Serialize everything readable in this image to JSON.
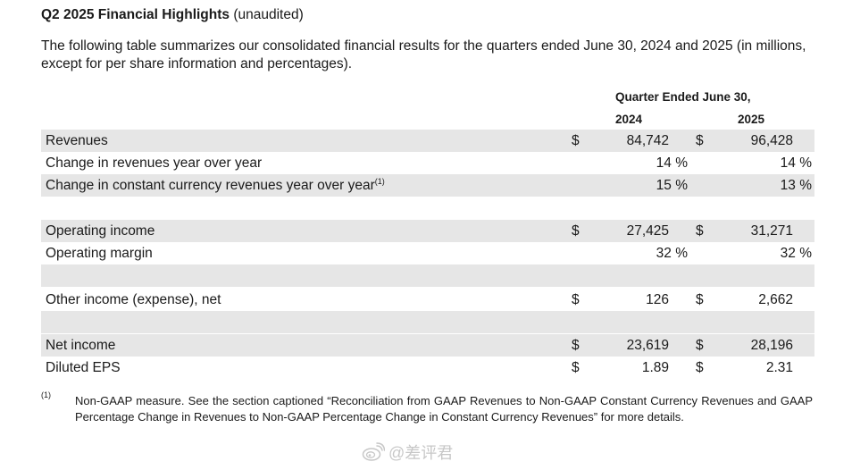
{
  "title": {
    "bold": "Q2 2025 Financial Highlights",
    "suffix": " (unaudited)"
  },
  "intro": "The following table summarizes our consolidated financial results for the quarters ended June 30, 2024 and 2025 (in millions, except for per share information and percentages).",
  "table": {
    "period_header": "Quarter Ended June 30,",
    "years": [
      "2024",
      "2025"
    ],
    "rows": [
      {
        "label": "Revenues",
        "currency1": "$",
        "value1": "84,742",
        "currency2": "$",
        "value2": "96,428"
      },
      {
        "label": "Change in revenues year over year",
        "value1": "14 %",
        "value2": "14 %"
      },
      {
        "label": "Change in constant currency revenues year over year",
        "sup": "(1)",
        "value1": "15 %",
        "value2": "13 %"
      },
      {
        "label": "Operating income",
        "currency1": "$",
        "value1": "27,425",
        "currency2": "$",
        "value2": "31,271"
      },
      {
        "label": "Operating margin",
        "value1": "32 %",
        "value2": "32 %"
      },
      {
        "label": "Other income (expense), net",
        "currency1": "$",
        "value1": "126",
        "currency2": "$",
        "value2": "2,662"
      },
      {
        "label": "Net income",
        "currency1": "$",
        "value1": "23,619",
        "currency2": "$",
        "value2": "28,196"
      },
      {
        "label": "Diluted EPS",
        "currency1": "$",
        "value1": "1.89",
        "currency2": "$",
        "value2": "2.31"
      }
    ]
  },
  "footnote": {
    "mark": "(1)",
    "text": "Non-GAAP measure. See the section captioned “Reconciliation from GAAP Revenues to Non-GAAP Constant Currency Revenues and GAAP Percentage Change in Revenues to Non-GAAP Percentage Change in Constant Currency Revenues” for more details."
  },
  "watermark": {
    "icon": "weibo-logo-icon",
    "text": "@差评君"
  }
}
